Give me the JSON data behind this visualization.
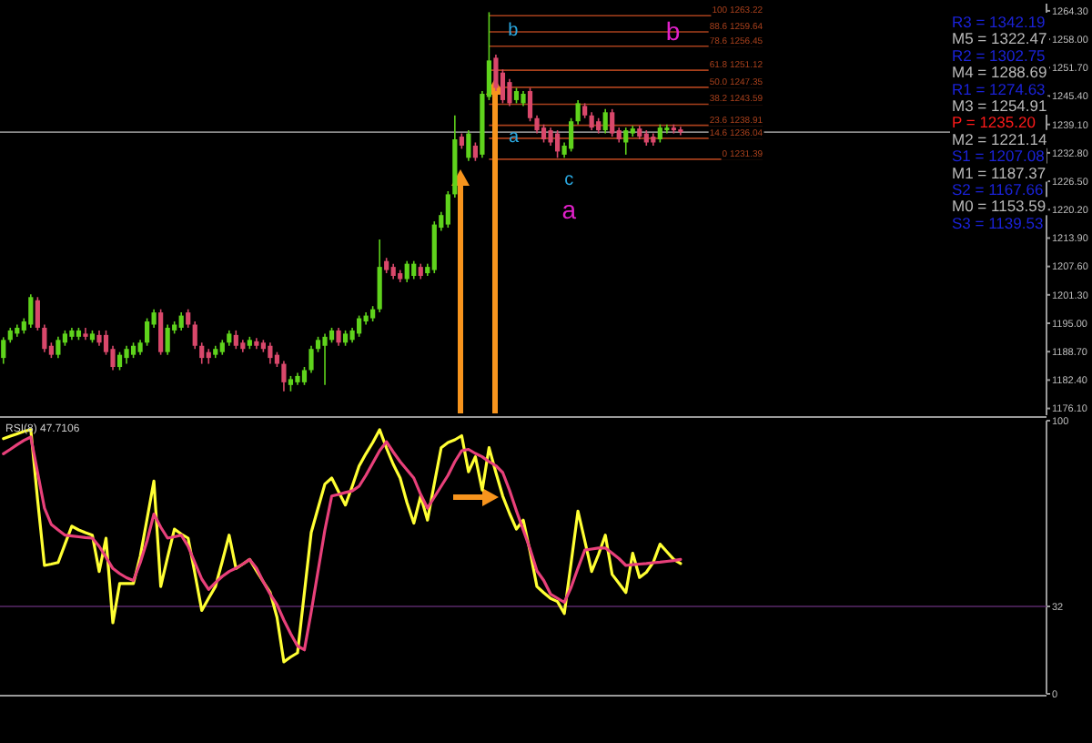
{
  "chart_data": [
    {
      "type": "candlestick",
      "categories": [
        null,
        null,
        null,
        null,
        null,
        null,
        null,
        null,
        null,
        null,
        null,
        null,
        null,
        null,
        null,
        null,
        null,
        null,
        null,
        null,
        null,
        null,
        null,
        null,
        null,
        null,
        null,
        null,
        null,
        null,
        null,
        null,
        null,
        null,
        null,
        null,
        null,
        null,
        null,
        null,
        null,
        null,
        null,
        null,
        null,
        null,
        null,
        null,
        null,
        null,
        null,
        null,
        null,
        null,
        null,
        null,
        null,
        null,
        null,
        null,
        null,
        null,
        null,
        null,
        null,
        null,
        null,
        null,
        null,
        null,
        null,
        null,
        null,
        null,
        null,
        null,
        null,
        null,
        null,
        null,
        null,
        null,
        null,
        null,
        null,
        null,
        null,
        null,
        null,
        null,
        null,
        null,
        null,
        null,
        null,
        null,
        null,
        null,
        null,
        null,
        null,
        null,
        null,
        null,
        null,
        null,
        null,
        null,
        null,
        null,
        null,
        null,
        null,
        null,
        null,
        null,
        null,
        null,
        null,
        null,
        null,
        null,
        null,
        null,
        null,
        null,
        null,
        null,
        null,
        null,
        null,
        null,
        null,
        null,
        null,
        null,
        null,
        null,
        null,
        null,
        null,
        null,
        null,
        null,
        null,
        null,
        null,
        null,
        null,
        null,
        null,
        null,
        null
      ],
      "ohlc": [
        [
          1187.3,
          1191.9,
          1186.0,
          1191.3
        ],
        [
          1191.3,
          1194.0,
          1190.7,
          1193.4
        ],
        [
          1192.7,
          1194.7,
          1192.0,
          1194.0
        ],
        [
          1193.4,
          1196.1,
          1192.7,
          1195.4
        ],
        [
          1194.7,
          1201.4,
          1194.0,
          1200.8
        ],
        [
          1200.1,
          1200.8,
          1193.4,
          1194.0
        ],
        [
          1194.0,
          1194.7,
          1188.6,
          1189.3
        ],
        [
          1190.0,
          1190.7,
          1187.3,
          1188.0
        ],
        [
          1188.0,
          1192.0,
          1187.3,
          1191.3
        ],
        [
          1190.7,
          1193.4,
          1190.0,
          1192.7
        ],
        [
          1192.0,
          1194.0,
          1191.3,
          1193.4
        ],
        [
          1192.0,
          1194.0,
          1191.3,
          1193.4
        ],
        [
          1192.7,
          1194.0,
          1191.3,
          1192.0
        ],
        [
          1191.3,
          1193.4,
          1190.7,
          1192.7
        ],
        [
          1192.4,
          1193.4,
          1190.0,
          1190.7
        ],
        [
          1192.4,
          1193.4,
          1188.0,
          1188.6
        ],
        [
          1189.3,
          1190.0,
          1184.6,
          1185.3
        ],
        [
          1185.3,
          1188.6,
          1184.6,
          1188.0
        ],
        [
          1187.3,
          1190.0,
          1186.0,
          1189.3
        ],
        [
          1188.0,
          1190.7,
          1187.3,
          1190.0
        ],
        [
          1188.6,
          1191.3,
          1188.0,
          1190.7
        ],
        [
          1190.7,
          1196.1,
          1190.0,
          1195.4
        ],
        [
          1194.7,
          1198.1,
          1194.0,
          1197.4
        ],
        [
          1197.4,
          1198.1,
          1188.0,
          1188.6
        ],
        [
          1188.6,
          1194.7,
          1188.0,
          1194.0
        ],
        [
          1193.4,
          1195.4,
          1192.7,
          1194.7
        ],
        [
          1194.0,
          1197.4,
          1193.4,
          1196.7
        ],
        [
          1197.4,
          1198.1,
          1194.0,
          1194.7
        ],
        [
          1194.7,
          1195.4,
          1189.3,
          1190.0
        ],
        [
          1190.0,
          1190.7,
          1186.0,
          1187.3
        ],
        [
          1188.6,
          1189.3,
          1186.0,
          1187.3
        ],
        [
          1188.0,
          1190.0,
          1187.3,
          1189.3
        ],
        [
          1188.6,
          1191.3,
          1188.0,
          1190.7
        ],
        [
          1190.7,
          1193.4,
          1190.0,
          1192.7
        ],
        [
          1192.4,
          1193.4,
          1189.3,
          1190.0
        ],
        [
          1190.7,
          1191.3,
          1188.6,
          1189.3
        ],
        [
          1190.0,
          1192.0,
          1189.3,
          1191.3
        ],
        [
          1191.0,
          1191.7,
          1189.3,
          1190.0
        ],
        [
          1190.7,
          1191.3,
          1188.6,
          1189.3
        ],
        [
          1190.0,
          1190.7,
          1186.0,
          1187.3
        ],
        [
          1188.0,
          1188.6,
          1185.3,
          1186.0
        ],
        [
          1186.0,
          1186.6,
          1179.9,
          1181.9
        ],
        [
          1181.3,
          1183.3,
          1179.9,
          1182.6
        ],
        [
          1181.9,
          1184.0,
          1181.3,
          1183.3
        ],
        [
          1181.9,
          1185.3,
          1181.3,
          1184.6
        ],
        [
          1184.6,
          1190.0,
          1184.0,
          1189.3
        ],
        [
          1189.3,
          1192.0,
          1188.6,
          1191.3
        ],
        [
          1190.0,
          1192.7,
          1181.3,
          1192.0
        ],
        [
          1191.3,
          1194.0,
          1190.7,
          1193.4
        ],
        [
          1193.4,
          1194.0,
          1190.0,
          1190.7
        ],
        [
          1190.7,
          1193.4,
          1190.0,
          1192.7
        ],
        [
          1191.3,
          1194.0,
          1190.7,
          1193.4
        ],
        [
          1192.7,
          1196.7,
          1192.0,
          1196.1
        ],
        [
          1195.4,
          1197.4,
          1194.7,
          1196.7
        ],
        [
          1196.1,
          1198.8,
          1195.4,
          1198.1
        ],
        [
          1198.1,
          1213.6,
          1197.4,
          1207.5
        ],
        [
          1208.8,
          1209.5,
          1206.1,
          1206.8
        ],
        [
          1207.5,
          1208.2,
          1204.8,
          1205.5
        ],
        [
          1206.1,
          1206.8,
          1204.1,
          1204.8
        ],
        [
          1204.8,
          1208.8,
          1204.1,
          1208.2
        ],
        [
          1205.5,
          1208.8,
          1204.8,
          1208.2
        ],
        [
          1207.5,
          1208.2,
          1204.8,
          1205.5
        ],
        [
          1206.1,
          1208.2,
          1205.5,
          1207.5
        ],
        [
          1206.8,
          1217.6,
          1206.1,
          1216.9
        ],
        [
          1216.2,
          1219.7,
          1215.5,
          1219.0
        ],
        [
          1216.9,
          1224.3,
          1216.2,
          1223.6
        ],
        [
          1223.6,
          1241.1,
          1222.9,
          1235.8
        ],
        [
          1236.4,
          1237.1,
          1233.7,
          1234.4
        ],
        [
          1231.7,
          1237.8,
          1231.0,
          1237.1
        ],
        [
          1234.4,
          1235.1,
          1231.0,
          1231.7
        ],
        [
          1232.4,
          1246.5,
          1231.7,
          1245.9
        ],
        [
          1245.2,
          1264.0,
          1244.5,
          1253.3
        ],
        [
          1253.9,
          1254.6,
          1246.5,
          1247.2
        ],
        [
          1250.6,
          1251.3,
          1243.8,
          1244.5
        ],
        [
          1248.5,
          1249.2,
          1243.2,
          1243.8
        ],
        [
          1244.5,
          1247.2,
          1243.8,
          1246.5
        ],
        [
          1243.8,
          1246.5,
          1243.2,
          1245.9
        ],
        [
          1246.5,
          1247.2,
          1239.8,
          1240.5
        ],
        [
          1240.5,
          1241.1,
          1237.1,
          1237.8
        ],
        [
          1238.4,
          1239.1,
          1235.1,
          1235.8
        ],
        [
          1237.8,
          1238.4,
          1234.4,
          1235.1
        ],
        [
          1237.1,
          1237.8,
          1231.7,
          1233.1
        ],
        [
          1232.4,
          1235.1,
          1231.7,
          1234.4
        ],
        [
          1233.7,
          1240.5,
          1233.1,
          1239.8
        ],
        [
          1239.8,
          1244.5,
          1239.1,
          1243.8
        ],
        [
          1243.2,
          1243.8,
          1240.5,
          1241.1
        ],
        [
          1241.1,
          1241.8,
          1237.8,
          1238.4
        ],
        [
          1239.8,
          1240.5,
          1237.1,
          1237.8
        ],
        [
          1237.8,
          1242.5,
          1237.1,
          1241.8
        ],
        [
          1241.8,
          1242.5,
          1236.4,
          1237.1
        ],
        [
          1237.8,
          1238.4,
          1235.1,
          1235.8
        ],
        [
          1235.1,
          1238.4,
          1232.4,
          1237.8
        ],
        [
          1237.1,
          1238.8,
          1236.4,
          1238.2
        ],
        [
          1238.2,
          1238.8,
          1235.8,
          1236.4
        ],
        [
          1237.1,
          1237.8,
          1234.4,
          1235.1
        ],
        [
          1236.4,
          1237.1,
          1234.4,
          1235.1
        ],
        [
          1235.8,
          1239.1,
          1235.1,
          1238.4
        ],
        [
          1237.8,
          1239.1,
          1237.1,
          1238.4
        ],
        [
          1238.4,
          1239.1,
          1237.1,
          1237.8
        ],
        [
          1238.0,
          1238.6,
          1236.7,
          1237.4
        ],
        null,
        null,
        null,
        null,
        null,
        null,
        null,
        null,
        null,
        null,
        null,
        null,
        null,
        null,
        null,
        null,
        null,
        null,
        null,
        null,
        null,
        null,
        null,
        null,
        null,
        null,
        null,
        null,
        null,
        null,
        null,
        null,
        null,
        null,
        null,
        null,
        null,
        null,
        null,
        null,
        null,
        null,
        null,
        null,
        null,
        null,
        null,
        null,
        null,
        null,
        null,
        null,
        null
      ],
      "colors": [
        "#5fd31c",
        "#5fd31c",
        "#5fd31c",
        "#5fd31c",
        "#5fd31c",
        "#d9486b",
        "#d9486b",
        "#d9486b",
        "#5fd31c",
        "#5fd31c",
        "#5fd31c",
        "#5fd31c",
        "#d9486b",
        "#5fd31c",
        "#d9486b",
        "#d9486b",
        "#d9486b",
        "#5fd31c",
        "#5fd31c",
        "#5fd31c",
        "#5fd31c",
        "#5fd31c",
        "#5fd31c",
        "#d9486b",
        "#5fd31c",
        "#5fd31c",
        "#5fd31c",
        "#d9486b",
        "#d9486b",
        "#d9486b",
        "#d9486b",
        "#5fd31c",
        "#5fd31c",
        "#5fd31c",
        "#d9486b",
        "#d9486b",
        "#5fd31c",
        "#d9486b",
        "#d9486b",
        "#d9486b",
        "#d9486b",
        "#d9486b",
        "#5fd31c",
        "#5fd31c",
        "#5fd31c",
        "#5fd31c",
        "#5fd31c",
        "#5fd31c",
        "#5fd31c",
        "#d9486b",
        "#5fd31c",
        "#5fd31c",
        "#5fd31c",
        "#5fd31c",
        "#5fd31c",
        "#5fd31c",
        "#d9486b",
        "#d9486b",
        "#d9486b",
        "#5fd31c",
        "#5fd31c",
        "#d9486b",
        "#5fd31c",
        "#5fd31c",
        "#5fd31c",
        "#5fd31c",
        "#5fd31c",
        "#d9486b",
        "#5fd31c",
        "#d9486b",
        "#5fd31c",
        "#5fd31c",
        "#d9486b",
        "#d9486b",
        "#d9486b",
        "#5fd31c",
        "#5fd31c",
        "#d9486b",
        "#d9486b",
        "#d9486b",
        "#d9486b",
        "#d9486b",
        "#5fd31c",
        "#5fd31c",
        "#5fd31c",
        "#d9486b",
        "#d9486b",
        "#d9486b",
        "#5fd31c",
        "#d9486b",
        "#d9486b",
        "#5fd31c",
        "#5fd31c",
        "#d9486b",
        "#d9486b",
        "#d9486b",
        "#5fd31c",
        "#5fd31c",
        "#d9486b",
        "#d9486b",
        null,
        null,
        null,
        null,
        null,
        null,
        null,
        null,
        null,
        null,
        null,
        null,
        null,
        null,
        null,
        null,
        null,
        null,
        null,
        null,
        null,
        null,
        null,
        null,
        null,
        null,
        null,
        null,
        null,
        null,
        null,
        null,
        null,
        null,
        null,
        null,
        null,
        null,
        null,
        null,
        null,
        null,
        null,
        null,
        null,
        null,
        null,
        null,
        null,
        null,
        null,
        null,
        null
      ],
      "ylim": [
        1174.6,
        1265.9
      ],
      "yticks": [
        {
          "value": 1264.3,
          "label": "1264.30"
        },
        {
          "value": 1258,
          "label": "1258.00"
        },
        {
          "value": 1251.7,
          "label": "1251.70"
        },
        {
          "value": 1245.4,
          "label": "1245.40"
        },
        {
          "value": 1239.1,
          "label": "1239.10"
        },
        {
          "value": 1232.8,
          "label": "1232.80"
        },
        {
          "value": 1226.5,
          "label": "1226.50"
        },
        {
          "value": 1220.2,
          "label": "1220.20"
        },
        {
          "value": 1213.9,
          "label": "1213.90"
        },
        {
          "value": 1207.6,
          "label": "1207.60"
        },
        {
          "value": 1201.3,
          "label": "1201.30"
        },
        {
          "value": 1195,
          "label": "1195.00"
        },
        {
          "value": 1188.7,
          "label": "1188.70"
        },
        {
          "value": 1182.4,
          "label": "1182.40"
        },
        {
          "value": 1176.1,
          "label": "1176.10"
        }
      ],
      "tick_labels": "y",
      "ref_lines": [
        {
          "axis": "y",
          "value": 1263.22,
          "label": "100 1263.22",
          "color": "#a8401c"
        },
        {
          "axis": "y",
          "value": 1259.64,
          "label": "88.6 1259.64",
          "color": "#a8401c"
        },
        {
          "axis": "y",
          "value": 1256.45,
          "label": "78.6 1256.45",
          "color": "#a8401c"
        },
        {
          "axis": "y",
          "value": 1251.12,
          "label": "61.8 1251.12",
          "color": "#a8401c"
        },
        {
          "axis": "y",
          "value": 1247.35,
          "label": "50.0 1247.35",
          "color": "#a8401c"
        },
        {
          "axis": "y",
          "value": 1243.59,
          "label": "38.2 1243.59",
          "color": "#a8401c"
        },
        {
          "axis": "y",
          "value": 1238.91,
          "label": "23.6 1238.91",
          "color": "#a8401c"
        },
        {
          "axis": "y",
          "value": 1236.04,
          "label": "14.6 1236.04",
          "color": "#a8401c"
        },
        {
          "axis": "y",
          "value": 1231.39,
          "label": "0 1231.39",
          "color": "#a8401c"
        },
        {
          "axis": "y",
          "value": 1237.4,
          "color": "#8a8a8a"
        }
      ],
      "annotations": [
        {
          "text": "b",
          "y": 1260.3
        },
        {
          "text": "a",
          "y": 1236.6
        },
        "c",
        {
          "text": "b",
          "y": 1259.9
        },
        "a",
        "R3 = 1342.19",
        "M5 = 1322.47",
        "R2 = 1302.75",
        "M4 = 1288.69",
        "R1 = 1274.63",
        "M3 = 1254.91",
        "P  = 1235.20",
        "M2 = 1221.14",
        "S1 = 1207.08",
        "M1 = 1187.37",
        "S2 = 1167.66",
        "M0 = 1153.59",
        "S3 = 1139.53"
      ]
    },
    {
      "type": "line",
      "title": "RSI(8) 47.7106",
      "series": [
        {
          "color": "#ffff33",
          "values": [
            93.4,
            94.3,
            95.2,
            96.1,
            96.7,
            71,
            47,
            47.5,
            48.1,
            54.8,
            61.4,
            60,
            59,
            58.1,
            44.8,
            57,
            26,
            40.4,
            40.4,
            40.4,
            50.3,
            64,
            77.9,
            39.3,
            50,
            60.3,
            58.5,
            57,
            44,
            30.5,
            35,
            39.3,
            48.5,
            58.1,
            45.9,
            47.5,
            49.2,
            45,
            41,
            37.1,
            28,
            11.7,
            13.5,
            15,
            37,
            59.1,
            68,
            76.8,
            79,
            74,
            69.1,
            76,
            83.4,
            87.9,
            92,
            96.7,
            90,
            84,
            79,
            70,
            62.5,
            72.4,
            63.6,
            77,
            90.1,
            92,
            93,
            94.5,
            81.3,
            86.8,
            74.6,
            90.1,
            81,
            72.4,
            66,
            60.3,
            63.6,
            52,
            39.3,
            37,
            34.9,
            33.8,
            29.4,
            48,
            66.9,
            56,
            44.8,
            51,
            58.1,
            43.7,
            40.4,
            37.1,
            51.5,
            42.6,
            44.5,
            48.1,
            54.8,
            52,
            49.2,
            47.7,
            null,
            null,
            null,
            null,
            null,
            null,
            null,
            null,
            null,
            null,
            null,
            null,
            null,
            null,
            null,
            null,
            null,
            null,
            null,
            null,
            null,
            null,
            null,
            null,
            null,
            null,
            null,
            null,
            null,
            null,
            null,
            null,
            null,
            null,
            null,
            null,
            null,
            null,
            null,
            null,
            null,
            null,
            null,
            null,
            null,
            null,
            null,
            null,
            null,
            null,
            null,
            null,
            null
          ]
        },
        {
          "color": "#e8407a",
          "values": [
            87.9,
            89.5,
            91.2,
            92.8,
            94,
            81,
            68,
            62,
            60,
            58.1,
            57.8,
            57.5,
            57.2,
            57,
            54,
            50,
            45.9,
            44,
            42.5,
            41.5,
            48,
            56,
            65.8,
            61,
            57,
            57.5,
            58.1,
            54,
            48,
            42,
            38.2,
            40.7,
            43,
            44.8,
            46,
            47.5,
            49.2,
            46,
            41,
            36.5,
            32.6,
            27,
            22,
            17.5,
            16.1,
            30,
            45,
            60,
            72.4,
            73,
            73.7,
            74.3,
            76,
            80,
            84.5,
            89,
            92.3,
            88.5,
            85,
            82,
            79,
            73,
            68,
            72,
            76,
            80,
            85,
            89,
            89.5,
            88,
            86.8,
            85,
            83.5,
            81,
            74.5,
            67,
            60,
            53,
            45,
            41.5,
            36.5,
            35,
            33.5,
            39,
            46,
            52.6,
            53,
            53.4,
            53.4,
            51.5,
            49.5,
            47,
            47.3,
            47.5,
            47.7,
            48,
            48.2,
            48.5,
            48.8,
            49.2,
            null,
            null,
            null,
            null,
            null,
            null,
            null,
            null,
            null,
            null,
            null,
            null,
            null,
            null,
            null,
            null,
            null,
            null,
            null,
            null,
            null,
            null,
            null,
            null,
            null,
            null,
            null,
            null,
            null,
            null,
            null,
            null,
            null,
            null,
            null,
            null,
            null,
            null,
            null,
            null,
            null,
            null,
            null,
            null,
            null,
            null,
            null,
            null,
            null,
            null,
            null,
            null,
            null
          ]
        }
      ],
      "categories": [
        null,
        null,
        null,
        null,
        null,
        null,
        null,
        null,
        null,
        null,
        null,
        null,
        null,
        null,
        null,
        null,
        null,
        null,
        null,
        null,
        null,
        null,
        null,
        null,
        null,
        null,
        null,
        null,
        null,
        null,
        null,
        null,
        null,
        null,
        null,
        null,
        null,
        null,
        null,
        null,
        null,
        null,
        null,
        null,
        null,
        null,
        null,
        null,
        null,
        null,
        null,
        null,
        null,
        null,
        null,
        null,
        null,
        null,
        null,
        null,
        null,
        null,
        null,
        null,
        null,
        null,
        null,
        null,
        null,
        null,
        null,
        null,
        null,
        null,
        null,
        null,
        null,
        null,
        null,
        null,
        null,
        null,
        null,
        null,
        null,
        null,
        null,
        null,
        null,
        null,
        null,
        null,
        null,
        null,
        null,
        null,
        null,
        null,
        null,
        null,
        null,
        null,
        null,
        null,
        null,
        null,
        null,
        null,
        null,
        null,
        null,
        null,
        null,
        null,
        null,
        null,
        null,
        null,
        null,
        null,
        null,
        null,
        null,
        null,
        null,
        null,
        null,
        null,
        null,
        null,
        null,
        null,
        null,
        null,
        null,
        null,
        null,
        null,
        null,
        null,
        null,
        null,
        null,
        null,
        null,
        null,
        null,
        null,
        null,
        null,
        null,
        null,
        null
      ],
      "ylim": [
        0,
        100
      ],
      "yticks": [
        100,
        32,
        0
      ],
      "tick_labels": "y",
      "ref_lines": [
        {
          "axis": "y",
          "value": 32,
          "color": "#5a2a6a"
        }
      ]
    }
  ]
}
